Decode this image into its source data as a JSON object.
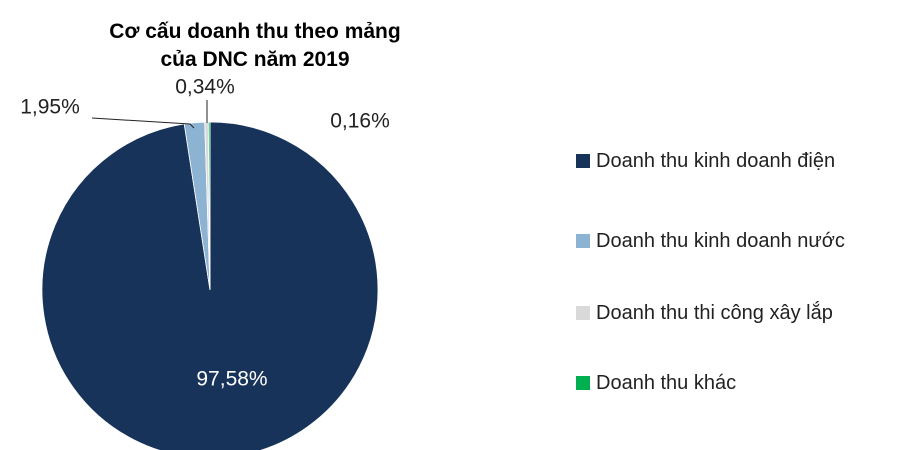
{
  "chart_data": {
    "type": "pie",
    "title": [
      "Cơ cấu doanh thu theo mảng",
      "của DNC  năm 2019"
    ],
    "categories": [
      "Doanh thu kinh doanh điện",
      "Doanh thu kinh doanh nước",
      "Doanh thu thi công xây lắp",
      "Doanh thu khác"
    ],
    "values": [
      97.58,
      1.95,
      0.34,
      0.16
    ],
    "value_labels": [
      "97,58%",
      "1,95%",
      "0,34%",
      "0,16%"
    ],
    "colors": [
      "#17335a",
      "#8db3d3",
      "#d9d9d9",
      "#00b050"
    ],
    "legend": "right"
  }
}
